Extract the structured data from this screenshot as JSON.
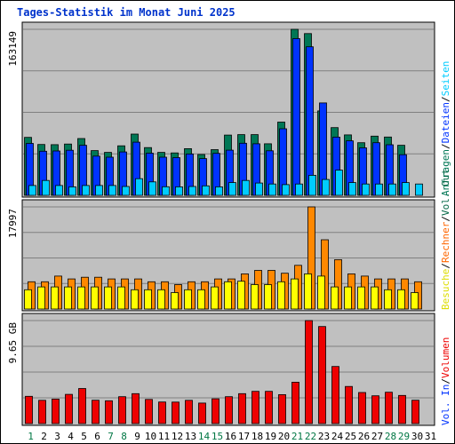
{
  "title": "Tages-Statistik im Monat Juni 2025",
  "colors": {
    "anfragen": "#007755",
    "dateien": "#0033ff",
    "seiten": "#00ccff",
    "besuche": "#ffff00",
    "rechner": "#ff8800",
    "volumen": "#ee0000",
    "plot_bg": "#c0c0c0",
    "grid": "#808080",
    "weekday": "#000000",
    "weekend": "#007744"
  },
  "chart_data": [
    {
      "type": "bar",
      "panel": "top",
      "max_label": "163149",
      "x": [
        "1",
        "2",
        "3",
        "4",
        "5",
        "6",
        "7",
        "8",
        "9",
        "10",
        "11",
        "12",
        "13",
        "14",
        "15",
        "16",
        "17",
        "18",
        "19",
        "20",
        "21",
        "22",
        "23",
        "24",
        "25",
        "26",
        "27",
        "28",
        "29",
        "30"
      ],
      "weekend_days": [
        "1",
        "7",
        "8",
        "14",
        "15",
        "21",
        "22",
        "28",
        "29"
      ],
      "ylim": [
        0,
        163149
      ],
      "series": [
        {
          "name": "Anfragen",
          "values": [
            57000,
            50000,
            49800,
            50400,
            55800,
            44000,
            42200,
            48700,
            60200,
            46900,
            42200,
            41700,
            45900,
            40100,
            44900,
            59200,
            59700,
            59700,
            50700,
            72000,
            163149,
            159000,
            83000,
            66600,
            59400,
            51700,
            58200,
            57300,
            49200,
            null
          ]
        },
        {
          "name": "Dateien",
          "values": [
            51000,
            43400,
            43600,
            44300,
            49200,
            38600,
            37500,
            42700,
            52300,
            41400,
            37500,
            37100,
            40700,
            36100,
            41300,
            44400,
            51200,
            50700,
            43800,
            65400,
            154000,
            146000,
            90800,
            57200,
            53600,
            46700,
            51700,
            49700,
            40000,
            null
          ]
        },
        {
          "name": "Seiten",
          "values": [
            9700,
            14700,
            9700,
            8400,
            9700,
            9700,
            9700,
            8700,
            16400,
            13300,
            8500,
            8400,
            8700,
            9300,
            8400,
            12600,
            14700,
            12100,
            11200,
            10600,
            11200,
            19700,
            15600,
            24800,
            12600,
            11200,
            11200,
            11200,
            12600,
            11200
          ]
        }
      ]
    },
    {
      "type": "bar",
      "panel": "middle",
      "max_label": "17997",
      "x": [
        "1",
        "2",
        "3",
        "4",
        "5",
        "6",
        "7",
        "8",
        "9",
        "10",
        "11",
        "12",
        "13",
        "14",
        "15",
        "16",
        "17",
        "18",
        "19",
        "20",
        "21",
        "22",
        "23",
        "24",
        "25",
        "26",
        "27",
        "28",
        "29",
        "30"
      ],
      "ylim": [
        0,
        17997
      ],
      "series": [
        {
          "name": "Besuche",
          "values": [
            3400,
            3900,
            3900,
            3900,
            3900,
            3900,
            3900,
            3900,
            3400,
            3400,
            3400,
            2900,
            3400,
            3400,
            3900,
            4800,
            4900,
            4300,
            4300,
            4800,
            5300,
            6200,
            5800,
            3900,
            3900,
            3900,
            3900,
            3400,
            3400,
            2900
          ]
        },
        {
          "name": "Rechner",
          "values": [
            4800,
            4800,
            5800,
            5300,
            5600,
            5600,
            5300,
            5300,
            5300,
            4800,
            4800,
            4300,
            4800,
            4800,
            5300,
            5300,
            6200,
            6800,
            6800,
            6300,
            7700,
            17997,
            12200,
            8700,
            6200,
            5800,
            5300,
            5300,
            5300,
            4800
          ]
        }
      ]
    },
    {
      "type": "bar",
      "panel": "bottom",
      "max_label": "9.65 GB",
      "x": [
        "1",
        "2",
        "3",
        "4",
        "5",
        "6",
        "7",
        "8",
        "9",
        "10",
        "11",
        "12",
        "13",
        "14",
        "15",
        "16",
        "17",
        "18",
        "19",
        "20",
        "21",
        "22",
        "23",
        "24",
        "25",
        "26",
        "27",
        "28",
        "29",
        "30"
      ],
      "ylim": [
        0,
        9.65
      ],
      "series": [
        {
          "name": "Volumen",
          "values": [
            2.55,
            2.18,
            2.3,
            2.74,
            3.29,
            2.19,
            2.14,
            2.52,
            2.8,
            2.26,
            2.02,
            2.01,
            2.18,
            1.92,
            2.32,
            2.52,
            2.8,
            3.02,
            3.02,
            2.71,
            3.88,
            9.65,
            9.09,
            5.35,
            3.48,
            2.91,
            2.6,
            2.94,
            2.64,
            2.19
          ]
        }
      ]
    }
  ],
  "right_legend": {
    "top": [
      {
        "text": "Anfragen",
        "color": "#007755"
      },
      {
        "text": "Dateien",
        "color": "#0033ff"
      },
      {
        "text": "Seiten",
        "color": "#00ccff"
      }
    ],
    "middle": [
      {
        "text": "Besuche",
        "color": "#dddd00"
      },
      {
        "text": "Rechner",
        "color": "#ff6600"
      },
      {
        "text": "Vol. Out",
        "color": "#006644"
      }
    ],
    "bottom": [
      {
        "text": "Vol. In",
        "color": "#0033ff"
      },
      {
        "text": "Volumen",
        "color": "#ee0000"
      }
    ],
    "separator": "/"
  },
  "x_axis_labels": [
    "1",
    "2",
    "3",
    "4",
    "5",
    "6",
    "7",
    "8",
    "9",
    "10",
    "11",
    "12",
    "13",
    "14",
    "15",
    "16",
    "17",
    "18",
    "19",
    "20",
    "21",
    "22",
    "23",
    "24",
    "25",
    "26",
    "27",
    "28",
    "29",
    "30",
    "31"
  ]
}
